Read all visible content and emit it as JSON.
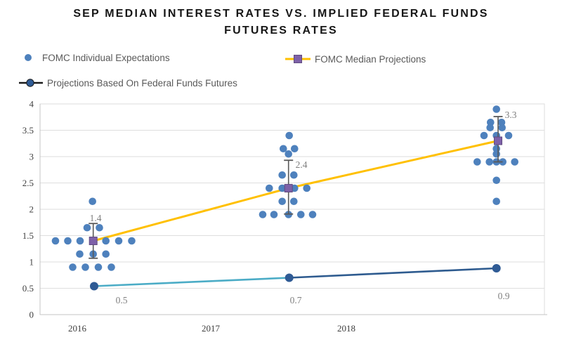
{
  "title": {
    "line1": "SEP MEDIAN INTEREST RATES VS. IMPLIED FEDERAL FUNDS",
    "line2": "FUTURES RATES"
  },
  "legend": [
    {
      "label": "FOMC Individual Expectations",
      "marker": "dot",
      "color": "#4E81BD"
    },
    {
      "label": "FOMC Median Projections",
      "marker": "line-square",
      "line_color": "#FFC000",
      "marker_color": "#7E61A8"
    },
    {
      "label": "Projections Based On Federal Funds Futures",
      "marker": "line-dot",
      "line_color": "#1a1a1a",
      "marker_color": "#2F5B95"
    }
  ],
  "chart_data": {
    "type": "scatter",
    "title": "SEP Median Interest Rates vs. Implied Federal Funds Futures Rates",
    "xlabel": "",
    "ylabel": "",
    "ylim": [
      0,
      4
    ],
    "grid": true,
    "yticks": [
      "0",
      "0.5",
      "1",
      "1.5",
      "2",
      "2.5",
      "3",
      "3.5",
      "4"
    ],
    "xticks": [
      {
        "label": "2016",
        "x": 110
      },
      {
        "label": "2017",
        "x": 300
      },
      {
        "label": "2018",
        "x": 493
      }
    ],
    "label_color": "#808080",
    "tick_color": "#404040",
    "grid_color": "#DEDEDE",
    "axis_color": "#C4C4C4",
    "series": [
      {
        "name": "FOMC Individual Expectations",
        "kind": "scatter",
        "color": "#4E81BD",
        "points": [
          [
            79,
            1.4
          ],
          [
            96.5,
            1.4
          ],
          [
            114,
            1.4
          ],
          [
            132.7,
            1.4
          ],
          [
            150.7,
            1.4
          ],
          [
            169,
            1.4
          ],
          [
            187.5,
            1.4
          ],
          [
            124,
            1.65
          ],
          [
            141.5,
            1.65
          ],
          [
            131.7,
            2.15
          ],
          [
            113.5,
            1.15
          ],
          [
            132.7,
            1.15
          ],
          [
            150.7,
            1.15
          ],
          [
            103.5,
            0.9
          ],
          [
            121.5,
            0.9
          ],
          [
            140,
            0.9
          ],
          [
            158.5,
            0.9
          ],
          [
            411.7,
            3.4
          ],
          [
            403.3,
            3.15
          ],
          [
            419.3,
            3.15
          ],
          [
            410.7,
            3.05
          ],
          [
            401.7,
            2.65
          ],
          [
            418.3,
            2.65
          ],
          [
            383.3,
            2.4
          ],
          [
            401.7,
            2.4
          ],
          [
            419.3,
            2.4
          ],
          [
            436.7,
            2.4
          ],
          [
            401.7,
            2.15
          ],
          [
            418.3,
            2.15
          ],
          [
            374,
            1.9
          ],
          [
            390,
            1.9
          ],
          [
            410.7,
            1.9
          ],
          [
            428.3,
            1.9
          ],
          [
            445,
            1.9
          ],
          [
            706.7,
            3.9
          ],
          [
            698.3,
            3.65
          ],
          [
            714,
            3.65
          ],
          [
            697.7,
            3.55
          ],
          [
            714.7,
            3.55
          ],
          [
            689,
            3.4
          ],
          [
            706.7,
            3.4
          ],
          [
            724,
            3.4
          ],
          [
            706.7,
            3.15
          ],
          [
            706.7,
            3.05
          ],
          [
            679.3,
            2.9
          ],
          [
            696.7,
            2.9
          ],
          [
            706.7,
            2.9
          ],
          [
            715.7,
            2.9
          ],
          [
            732.7,
            2.9
          ],
          [
            706.7,
            2.55
          ],
          [
            706.7,
            2.15
          ]
        ]
      },
      {
        "name": "FOMC Median Projections",
        "kind": "line-with-error-bars",
        "color": "#FFC000",
        "marker_color": "#7E61A8",
        "marker_edge": "#5F4B80",
        "error_color": "#595959",
        "points": [
          {
            "x": 132.7,
            "value": 1.4,
            "label": "1.4",
            "error_top": 1.73,
            "error_bottom": 1.07,
            "label_x": 136,
            "label_y": 315
          },
          {
            "x": 410.7,
            "value": 2.4,
            "label": "2.4",
            "error_top": 2.93,
            "error_bottom": 1.91,
            "label_x": 429,
            "label_y": 239
          },
          {
            "x": 709,
            "value": 3.3,
            "label": "3.3",
            "error_top": 3.76,
            "error_bottom": 2.9,
            "label_x": 727,
            "label_y": 168
          }
        ]
      },
      {
        "name": "Projections Based On Federal Funds Futures",
        "kind": "line",
        "segment_colors": [
          "#4BACC6",
          "#2E5B8F"
        ],
        "marker_color": "#2F5B95",
        "points": [
          {
            "x": 134,
            "value": 0.54,
            "label": "0.5",
            "label_x": 173,
            "label_y": 432
          },
          {
            "x": 411.7,
            "value": 0.7,
            "label": "0.7",
            "label_x": 421,
            "label_y": 432
          },
          {
            "x": 706.7,
            "value": 0.88,
            "label": "0.9",
            "label_x": 717,
            "label_y": 426
          }
        ]
      }
    ]
  }
}
